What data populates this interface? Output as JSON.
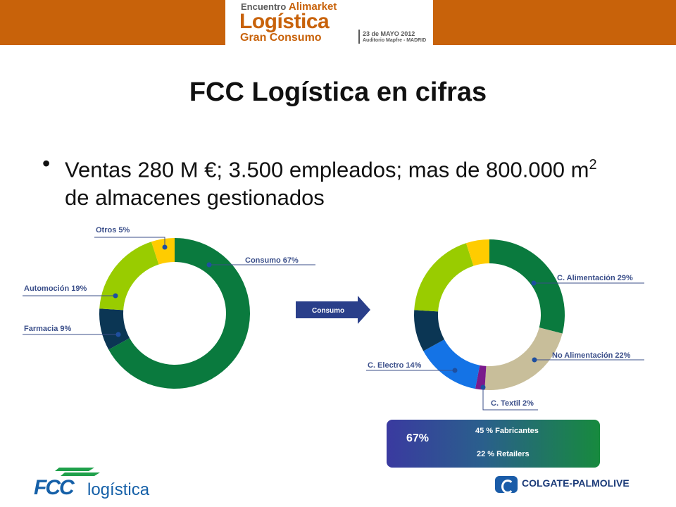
{
  "banner": {
    "event_prefix": "Encuentro",
    "event_brand": "Alimarket",
    "title_line1": "Logística",
    "title_line2": "Gran Consumo",
    "date": "23 de MAYO 2012",
    "venue": "Auditorio Mapfre - MADRID"
  },
  "slide": {
    "title": "FCC Logística en cifras",
    "bullet_part1": "Ventas 280 M €; 3.500 empleados; mas de 800.000 m",
    "bullet_sup": "2",
    "bullet_part2": " de almacenes gestionados"
  },
  "arrow_label": "Consumo",
  "summary": {
    "percent": "67%",
    "line1": "45 % Fabricantes",
    "line2": "22 % Retailers"
  },
  "logos": {
    "fcc_mark": "FCC",
    "fcc_word": "logística",
    "colgate": "COLGATE-PALMOLIVE"
  },
  "colors": {
    "banner": "#c8620a",
    "green": "#0a7a3e",
    "lime": "#99cc00",
    "yellow": "#ffcc00",
    "navy": "#0b3654",
    "blue": "#1473e6",
    "beige": "#c8be9a",
    "purple": "#7a1a8c",
    "label": "#3b4f8a"
  },
  "chart_data": [
    {
      "type": "pie",
      "donut": true,
      "slices": [
        {
          "label": "Consumo 67%",
          "value": 67,
          "color": "#0a7a3e"
        },
        {
          "label": "Farmacia 9%",
          "value": 9,
          "color": "#0b3654"
        },
        {
          "label": "Automoción 19%",
          "value": 19,
          "color": "#99cc00"
        },
        {
          "label": "Otros 5%",
          "value": 5,
          "color": "#ffcc00"
        }
      ]
    },
    {
      "type": "pie",
      "donut": true,
      "slices": [
        {
          "label": "C. Alimentación 29%",
          "value": 29,
          "color": "#0a7a3e"
        },
        {
          "label": "No Alimentación 22%",
          "value": 22,
          "color": "#c8be9a"
        },
        {
          "label": "C. Textil 2%",
          "value": 2,
          "color": "#7a1a8c"
        },
        {
          "label": "C. Electro 14%",
          "value": 14,
          "color": "#1473e6"
        },
        {
          "label": "",
          "value": 9,
          "color": "#0b3654"
        },
        {
          "label": "",
          "value": 19,
          "color": "#99cc00"
        },
        {
          "label": "",
          "value": 5,
          "color": "#ffcc00"
        }
      ]
    }
  ]
}
